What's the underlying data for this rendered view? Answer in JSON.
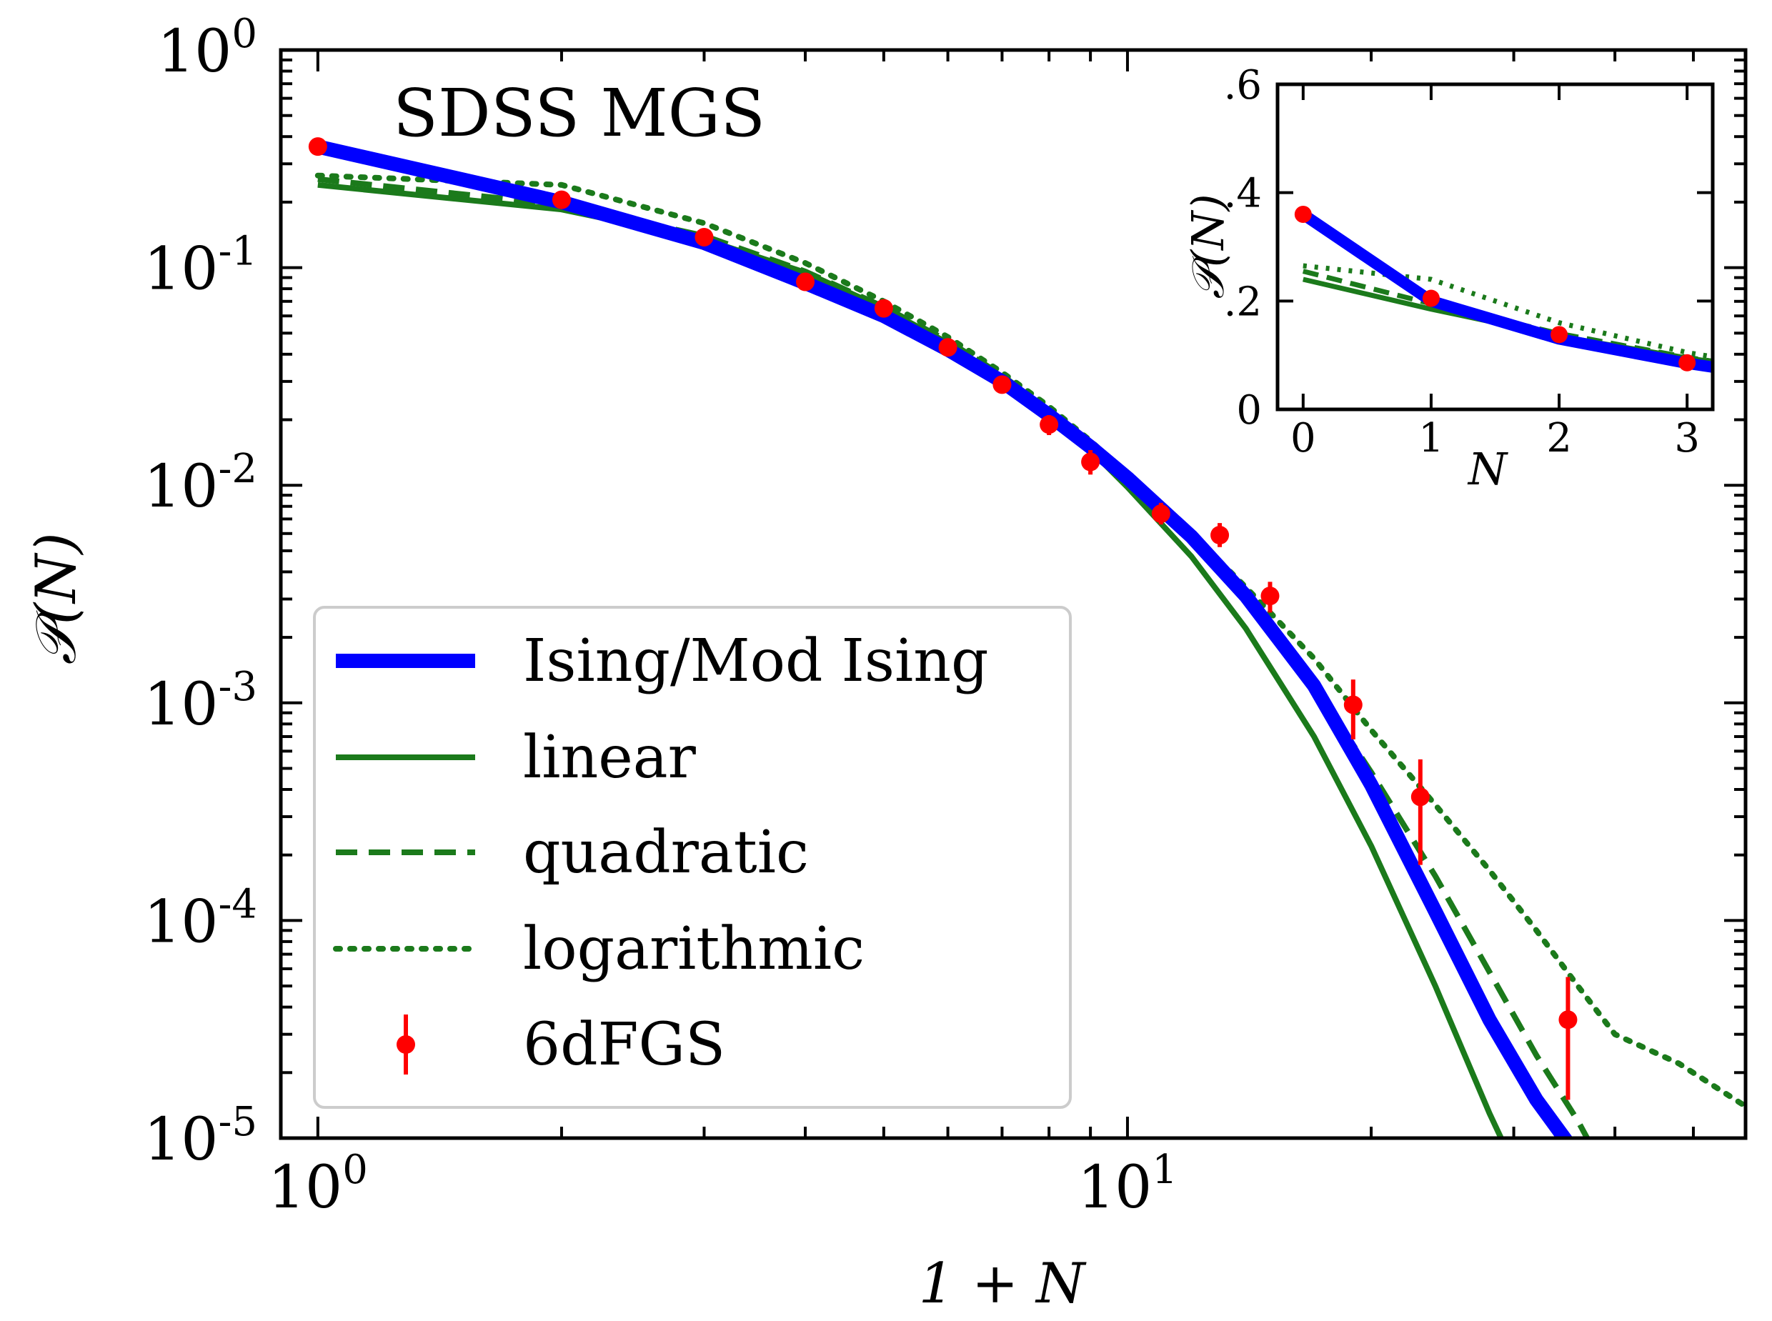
{
  "chart_data": {
    "type": "line",
    "title": "SDSS MGS",
    "xlabel": "1 + N",
    "ylabel": "𝒫(N)",
    "xscale": "log",
    "yscale": "log",
    "xlim": [
      0.9,
      58
    ],
    "ylim": [
      1e-05,
      1
    ],
    "x_ticks": [
      {
        "value": 1,
        "base": "10",
        "exp": "0"
      },
      {
        "value": 10,
        "base": "10",
        "exp": "1"
      }
    ],
    "y_ticks": [
      {
        "value": 1,
        "base": "10",
        "exp": "0"
      },
      {
        "value": 0.1,
        "base": "10",
        "exp": "-1"
      },
      {
        "value": 0.01,
        "base": "10",
        "exp": "-2"
      },
      {
        "value": 0.001,
        "base": "10",
        "exp": "-3"
      },
      {
        "value": 0.0001,
        "base": "10",
        "exp": "-4"
      },
      {
        "value": 1e-05,
        "base": "10",
        "exp": "-5"
      }
    ],
    "legend_position": "lower-left",
    "series": [
      {
        "name": "Ising/Mod Ising",
        "color": "#0000ff",
        "style": "solid-thick",
        "x": [
          1,
          2,
          3,
          4,
          5,
          6,
          7,
          8,
          9,
          10,
          12,
          14,
          17,
          20,
          24,
          28,
          32,
          35,
          36
        ],
        "y": [
          0.36,
          0.2,
          0.13,
          0.085,
          0.06,
          0.042,
          0.03,
          0.021,
          0.015,
          0.0108,
          0.0058,
          0.0031,
          0.0012,
          0.00042,
          0.00011,
          3.5e-05,
          1.5e-05,
          9.5e-06,
          8.5e-06
        ]
      },
      {
        "name": "linear",
        "color": "#1b7a1b",
        "style": "solid",
        "x": [
          1,
          2,
          3,
          4,
          5,
          6,
          7,
          8,
          9,
          10,
          12,
          14,
          17,
          20,
          24,
          28,
          32,
          34.5
        ],
        "y": [
          0.24,
          0.185,
          0.135,
          0.095,
          0.065,
          0.045,
          0.031,
          0.021,
          0.0145,
          0.0098,
          0.0047,
          0.0022,
          0.0007,
          0.00022,
          5e-05,
          1.3e-05,
          4.5e-06,
          9.2e-06
        ]
      },
      {
        "name": "quadratic",
        "color": "#1b7a1b",
        "style": "dashed",
        "x": [
          1,
          2,
          3,
          4,
          5,
          6,
          7,
          8,
          9,
          10,
          12,
          14,
          17,
          20,
          24,
          28,
          32,
          36,
          40,
          44,
          45
        ],
        "y": [
          0.255,
          0.195,
          0.14,
          0.096,
          0.066,
          0.046,
          0.032,
          0.022,
          0.0153,
          0.0106,
          0.0055,
          0.0029,
          0.0012,
          0.00048,
          0.00016,
          5.8e-05,
          2.4e-05,
          1.2e-05,
          5.8e-06,
          2.8e-06,
          9.5e-06
        ]
      },
      {
        "name": "logarithmic",
        "color": "#1b7a1b",
        "style": "dotted",
        "x": [
          1,
          2,
          3,
          4,
          5,
          6,
          7,
          8,
          9,
          10,
          12,
          14,
          17,
          20,
          24,
          28,
          32,
          36,
          40,
          48,
          58
        ],
        "y": [
          0.265,
          0.24,
          0.16,
          0.105,
          0.07,
          0.048,
          0.033,
          0.023,
          0.016,
          0.0112,
          0.006,
          0.0034,
          0.0016,
          0.00075,
          0.00034,
          0.00017,
          9e-05,
          5e-05,
          3e-05,
          2.2e-05,
          1.4e-05
        ]
      }
    ],
    "data_series": {
      "name": "6dFGS",
      "color": "#ff0000",
      "x": [
        1,
        2,
        3,
        4,
        5,
        6,
        7,
        8,
        9,
        11,
        13,
        15,
        19,
        23,
        35
      ],
      "y": [
        0.36,
        0.205,
        0.138,
        0.086,
        0.065,
        0.043,
        0.029,
        0.019,
        0.0128,
        0.0074,
        0.0059,
        0.0031,
        0.00098,
        0.00037,
        3.5e-05
      ],
      "yerr_low": [
        0.36,
        0.205,
        0.138,
        0.086,
        0.065,
        0.043,
        0.029,
        0.017,
        0.0112,
        0.0066,
        0.0052,
        0.0026,
        0.00068,
        0.00018,
        1.5e-05
      ],
      "yerr_high": [
        0.36,
        0.205,
        0.138,
        0.086,
        0.065,
        0.043,
        0.029,
        0.021,
        0.0145,
        0.0083,
        0.0067,
        0.0036,
        0.00128,
        0.00055,
        5.5e-05
      ]
    },
    "inset": {
      "type": "line",
      "xlabel": "N",
      "ylabel": "𝒫(N)",
      "xlim": [
        -0.2,
        3.2
      ],
      "ylim": [
        0,
        0.6
      ],
      "x_tick_labels": [
        {
          "value": 0,
          "label": "0"
        },
        {
          "value": 1,
          "label": "1"
        },
        {
          "value": 2,
          "label": "2"
        },
        {
          "value": 3,
          "label": "3"
        }
      ],
      "y_tick_labels": [
        {
          "value": 0,
          "label": "0"
        },
        {
          "value": 0.2,
          "label": ".2"
        },
        {
          "value": 0.4,
          "label": ".4"
        },
        {
          "value": 0.6,
          "label": ".6"
        }
      ],
      "series": [
        {
          "name": "Ising/Mod Ising",
          "x": [
            0,
            1,
            2,
            3,
            3.2
          ],
          "y": [
            0.36,
            0.2,
            0.13,
            0.085,
            0.078
          ]
        },
        {
          "name": "linear",
          "x": [
            0,
            1,
            2,
            3,
            3.2
          ],
          "y": [
            0.24,
            0.185,
            0.135,
            0.095,
            0.088
          ]
        },
        {
          "name": "quadratic",
          "x": [
            0,
            1,
            2,
            3,
            3.2
          ],
          "y": [
            0.255,
            0.195,
            0.14,
            0.096,
            0.089
          ]
        },
        {
          "name": "logarithmic",
          "x": [
            0,
            1,
            2,
            3,
            3.2
          ],
          "y": [
            0.265,
            0.24,
            0.16,
            0.105,
            0.097
          ]
        }
      ],
      "points": {
        "x": [
          0,
          1,
          2,
          3
        ],
        "y": [
          0.36,
          0.205,
          0.138,
          0.086
        ]
      }
    }
  }
}
